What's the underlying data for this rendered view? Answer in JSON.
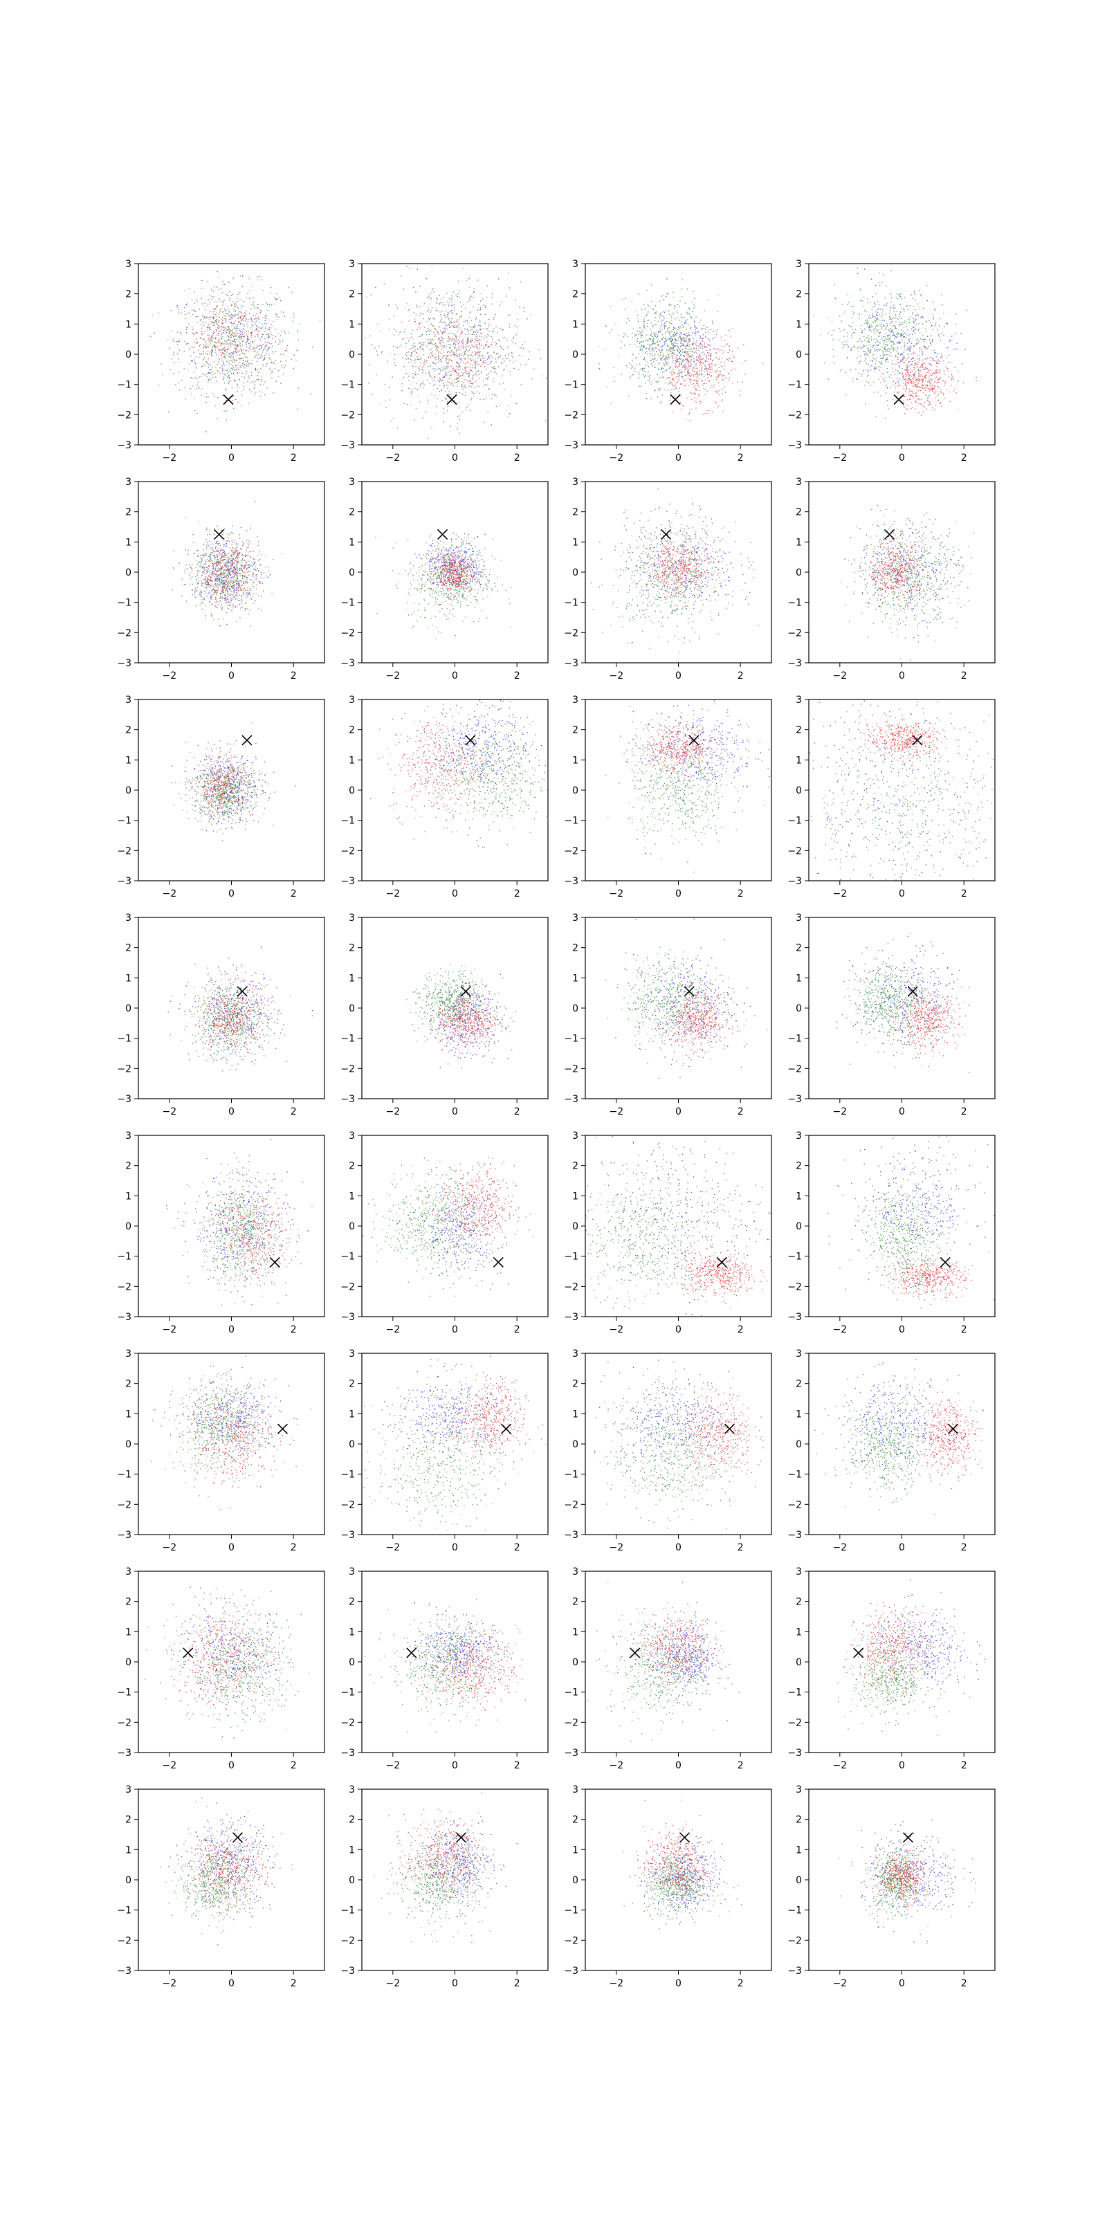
{
  "figure": {
    "rows": 8,
    "cols": 4,
    "series_colors": [
      "#2222dd",
      "#1a8a1a",
      "#e02020"
    ],
    "marker_color": "#000000"
  },
  "chart_data": {
    "type": "scatter",
    "xlim": [
      -3,
      3
    ],
    "ylim": [
      -3,
      3
    ],
    "xticks": [
      -2,
      0,
      2
    ],
    "yticks": [
      -3,
      -2,
      -1,
      0,
      1,
      2,
      3
    ],
    "xtick_labels": [
      "−2",
      "0",
      "2"
    ],
    "ytick_labels": [
      "−3",
      "−2",
      "−1",
      "0",
      "1",
      "2",
      "3"
    ],
    "grid": false,
    "legend": "none",
    "markers": [
      [
        -0.1,
        -1.5
      ],
      [
        -0.4,
        1.25
      ],
      [
        0.5,
        1.65
      ],
      [
        0.35,
        0.55
      ],
      [
        1.4,
        -1.2
      ],
      [
        1.65,
        0.5
      ],
      [
        -1.4,
        0.3
      ],
      [
        0.2,
        1.4
      ]
    ],
    "panels": [
      [
        {
          "blue": [
            0.1,
            0.5,
            0.9,
            0.9
          ],
          "green": [
            0,
            0.4,
            0.9,
            0.9
          ],
          "red": [
            -0.1,
            0.4,
            0.8,
            0.8
          ]
        },
        {
          "blue": [
            0,
            0.3,
            1.05,
            1.05
          ],
          "green": [
            -0.2,
            0.2,
            1.1,
            1.1
          ],
          "red": [
            0,
            0,
            0.75,
            0.8
          ]
        },
        {
          "blue": [
            -0.1,
            0.2,
            0.7,
            0.7
          ],
          "green": [
            -0.5,
            0.4,
            0.75,
            0.75
          ],
          "red": [
            0.6,
            -0.5,
            0.6,
            0.6
          ]
        },
        {
          "blue": [
            -0.1,
            0.4,
            0.9,
            0.8
          ],
          "green": [
            -0.6,
            0.6,
            0.75,
            0.8
          ],
          "red": [
            0.6,
            -0.9,
            0.5,
            0.45
          ]
        }
      ],
      [
        {
          "blue": [
            -0.2,
            0,
            0.55,
            0.6
          ],
          "green": [
            -0.2,
            -0.1,
            0.55,
            0.6
          ],
          "red": [
            -0.2,
            0,
            0.5,
            0.55
          ]
        },
        {
          "blue": [
            0,
            0.2,
            0.5,
            0.45
          ],
          "green": [
            -0.2,
            -0.3,
            0.7,
            0.7
          ],
          "red": [
            -0.1,
            0,
            0.35,
            0.35
          ]
        },
        {
          "blue": [
            0.1,
            0.3,
            0.9,
            0.8
          ],
          "green": [
            -0.3,
            -0.2,
            0.9,
            0.9
          ],
          "red": [
            0,
            0.1,
            0.5,
            0.5
          ]
        },
        {
          "blue": [
            0.2,
            0.2,
            0.85,
            0.8
          ],
          "green": [
            0.2,
            -0.2,
            0.8,
            0.8
          ],
          "red": [
            -0.2,
            0,
            0.45,
            0.5
          ]
        }
      ],
      [
        {
          "blue": [
            -0.1,
            0.1,
            0.6,
            0.6
          ],
          "green": [
            -0.3,
            0,
            0.5,
            0.5
          ],
          "red": [
            -0.3,
            0.1,
            0.5,
            0.5
          ]
        },
        {
          "blue": [
            0.8,
            1.5,
            0.8,
            0.7
          ],
          "green": [
            1.2,
            0.3,
            0.9,
            0.9
          ],
          "red": [
            -0.5,
            0.8,
            0.8,
            0.8
          ]
        },
        {
          "blue": [
            0.5,
            1.3,
            1,
            0.7
          ],
          "green": [
            0,
            -0.2,
            0.8,
            0.8
          ],
          "red": [
            0,
            1.4,
            0.6,
            0.4
          ]
        },
        {
          "blue": [
            0,
            0,
            1.8,
            1.8
          ],
          "green": [
            0,
            -0.8,
            1.8,
            1.3
          ],
          "red": [
            0.1,
            1.7,
            0.6,
            0.3
          ]
        }
      ],
      [
        {
          "blue": [
            0.1,
            -0.3,
            0.7,
            0.7
          ],
          "green": [
            -0.1,
            -0.3,
            0.6,
            0.6
          ],
          "red": [
            0,
            -0.3,
            0.5,
            0.55
          ]
        },
        {
          "blue": [
            0.3,
            -0.3,
            0.6,
            0.6
          ],
          "green": [
            -0.1,
            0.2,
            0.5,
            0.5
          ],
          "red": [
            0.4,
            -0.4,
            0.5,
            0.45
          ]
        },
        {
          "blue": [
            0.2,
            0.1,
            0.8,
            0.8
          ],
          "green": [
            -0.3,
            0.3,
            0.7,
            0.7
          ],
          "red": [
            0.6,
            -0.4,
            0.5,
            0.45
          ]
        },
        {
          "blue": [
            0.1,
            0.3,
            0.8,
            0.8
          ],
          "green": [
            -0.4,
            0.2,
            0.6,
            0.6
          ],
          "red": [
            0.8,
            -0.4,
            0.5,
            0.45
          ]
        }
      ],
      [
        {
          "blue": [
            0.3,
            -0.1,
            0.8,
            0.9
          ],
          "green": [
            0.3,
            -0.2,
            0.6,
            0.8
          ],
          "red": [
            0.6,
            -0.3,
            0.6,
            0.8
          ]
        },
        {
          "blue": [
            0.1,
            -0.1,
            0.7,
            0.8
          ],
          "green": [
            -0.8,
            0.2,
            0.8,
            0.8
          ],
          "red": [
            0.7,
            0.6,
            0.6,
            0.7
          ]
        },
        {
          "blue": [
            0,
            0.4,
            1.4,
            1.3
          ],
          "green": [
            -1.3,
            -0.4,
            0.9,
            1
          ],
          "red": [
            1.3,
            -1.6,
            0.6,
            0.35
          ]
        },
        {
          "blue": [
            0.4,
            0.6,
            1,
            1
          ],
          "green": [
            0.1,
            -0.3,
            0.6,
            0.7
          ],
          "red": [
            0.8,
            -1.7,
            0.6,
            0.3
          ]
        }
      ],
      [
        {
          "blue": [
            0.1,
            0.9,
            0.7,
            0.6
          ],
          "green": [
            -0.4,
            0.6,
            0.7,
            0.7
          ],
          "red": [
            -0.1,
            0.2,
            0.8,
            0.8
          ]
        },
        {
          "blue": [
            -0.2,
            1,
            0.9,
            0.7
          ],
          "green": [
            -0.6,
            -0.8,
            1,
            0.9
          ],
          "red": [
            1.1,
            0.8,
            0.6,
            0.6
          ]
        },
        {
          "blue": [
            -0.2,
            0.8,
            0.9,
            0.8
          ],
          "green": [
            -0.5,
            -0.5,
            0.9,
            0.9
          ],
          "red": [
            1.3,
            0.3,
            0.55,
            0.7
          ]
        },
        {
          "blue": [
            -0.3,
            0.6,
            0.9,
            0.8
          ],
          "green": [
            -0.5,
            -0.2,
            0.6,
            0.7
          ],
          "red": [
            1.5,
            0.3,
            0.45,
            0.6
          ]
        }
      ],
      [
        {
          "blue": [
            0,
            0.2,
            0.9,
            0.8
          ],
          "green": [
            0.3,
            -0.3,
            0.8,
            0.8
          ],
          "red": [
            -0.3,
            0.2,
            0.8,
            0.8
          ]
        },
        {
          "blue": [
            0.1,
            0.4,
            0.6,
            0.5
          ],
          "green": [
            -0.5,
            -0.1,
            0.8,
            0.8
          ],
          "red": [
            0.6,
            -0.2,
            0.7,
            0.6
          ]
        },
        {
          "blue": [
            0.2,
            0.1,
            0.5,
            0.6
          ],
          "green": [
            -0.7,
            -0.2,
            0.8,
            0.8
          ],
          "red": [
            -0.1,
            0.5,
            0.6,
            0.6
          ]
        },
        {
          "blue": [
            0.6,
            0.4,
            0.8,
            0.7
          ],
          "green": [
            -0.4,
            -0.6,
            0.6,
            0.6
          ],
          "red": [
            -0.3,
            0.5,
            0.6,
            0.6
          ]
        }
      ],
      [
        {
          "blue": [
            -0.1,
            0.6,
            0.7,
            0.7
          ],
          "green": [
            -0.5,
            -0.1,
            0.6,
            0.6
          ],
          "red": [
            -0.2,
            0.3,
            0.6,
            0.6
          ]
        },
        {
          "blue": [
            0,
            0.5,
            0.6,
            0.6
          ],
          "green": [
            -0.5,
            -0.1,
            0.7,
            0.7
          ],
          "red": [
            -0.4,
            0.8,
            0.6,
            0.6
          ]
        },
        {
          "blue": [
            0.2,
            0,
            0.6,
            0.6
          ],
          "green": [
            -0.1,
            -0.1,
            0.5,
            0.5
          ],
          "red": [
            -0.1,
            0.5,
            0.5,
            0.6
          ]
        },
        {
          "blue": [
            0.3,
            0.1,
            0.8,
            0.7
          ],
          "green": [
            -0.2,
            0,
            0.4,
            0.5
          ],
          "red": [
            0,
            0.1,
            0.35,
            0.4
          ]
        }
      ]
    ]
  }
}
